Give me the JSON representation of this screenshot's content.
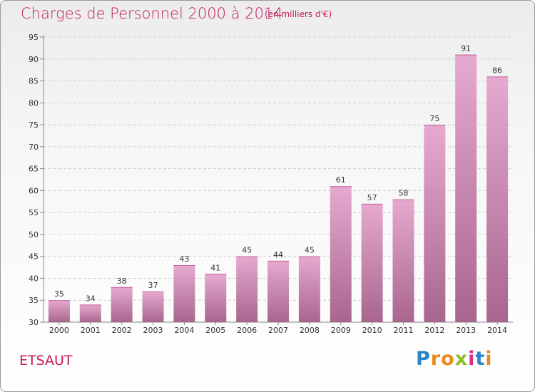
{
  "header": {
    "title": "Charges de Personnel 2000 à 2014",
    "subtitle": "(en milliers d'€)"
  },
  "footer": {
    "commune": "ETSAUT",
    "brand": "Proxiti"
  },
  "colors": {
    "title": "#c2185b",
    "bar_top": "#e6a9cf",
    "bar_bottom": "#a8668f",
    "grid": "#cfcfcf"
  },
  "chart_data": {
    "type": "bar",
    "title": "Charges de Personnel 2000 à 2014",
    "subtitle": "(en milliers d'€)",
    "xlabel": "",
    "ylabel": "",
    "categories": [
      "2000",
      "2001",
      "2002",
      "2003",
      "2004",
      "2005",
      "2006",
      "2007",
      "2008",
      "2009",
      "2010",
      "2011",
      "2012",
      "2013",
      "2014"
    ],
    "values": [
      35,
      34,
      38,
      37,
      43,
      41,
      45,
      44,
      45,
      61,
      57,
      58,
      75,
      91,
      86
    ],
    "ylim": [
      30,
      95
    ],
    "yticks": [
      30,
      35,
      40,
      45,
      50,
      55,
      60,
      65,
      70,
      75,
      80,
      85,
      90,
      95
    ],
    "grid": true
  }
}
